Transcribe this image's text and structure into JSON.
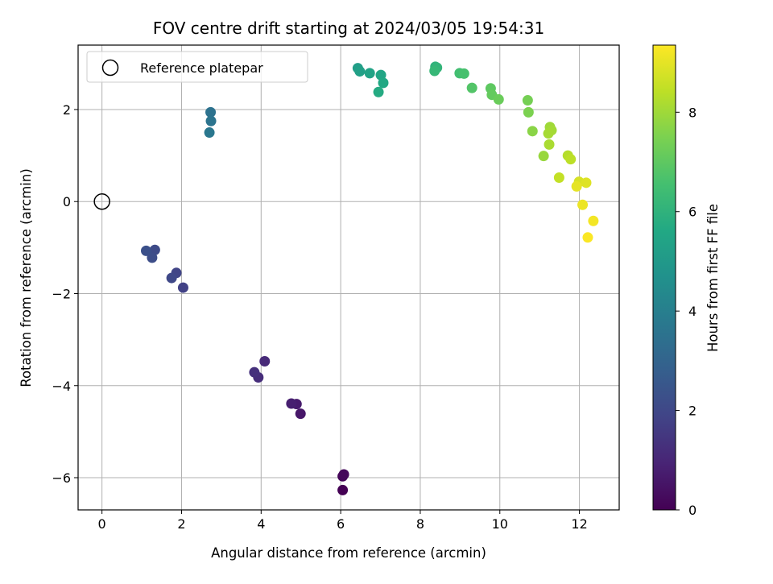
{
  "chart_data": {
    "type": "scatter",
    "title": "FOV centre drift starting at 2024/03/05 19:54:31",
    "xlabel": "Angular distance from reference (arcmin)",
    "ylabel": "Rotation from reference (arcmin)",
    "xlim": [
      -0.6,
      13.0
    ],
    "ylim": [
      -6.7,
      3.4
    ],
    "xticks": [
      0,
      2,
      4,
      6,
      8,
      10,
      12
    ],
    "yticks": [
      -6,
      -4,
      -2,
      0,
      2
    ],
    "xtick_labels": [
      "0",
      "2",
      "4",
      "6",
      "8",
      "10",
      "12"
    ],
    "ytick_labels": [
      "−6",
      "−4",
      "−2",
      "0",
      "2"
    ],
    "grid": true,
    "legend": {
      "placement": "top-left",
      "entries": [
        {
          "label": "Reference platepar",
          "marker": "open-circle",
          "x": 0,
          "y": 0
        }
      ]
    },
    "colorbar": {
      "label": "Hours from first FF file",
      "range": [
        0,
        9.35
      ],
      "ticks": [
        0,
        2,
        4,
        6,
        8
      ],
      "tick_labels": [
        "0",
        "2",
        "4",
        "6",
        "8"
      ],
      "colormap": "viridis"
    },
    "points": [
      {
        "x": 6.05,
        "y": -6.27,
        "hours": 0.0
      },
      {
        "x": 6.05,
        "y": -5.97,
        "hours": 0.1
      },
      {
        "x": 6.08,
        "y": -5.93,
        "hours": 0.2
      },
      {
        "x": 4.99,
        "y": -4.61,
        "hours": 0.6
      },
      {
        "x": 4.89,
        "y": -4.4,
        "hours": 0.7
      },
      {
        "x": 4.76,
        "y": -4.39,
        "hours": 0.8
      },
      {
        "x": 4.09,
        "y": -3.47,
        "hours": 1.1
      },
      {
        "x": 3.93,
        "y": -3.82,
        "hours": 1.2
      },
      {
        "x": 3.83,
        "y": -3.71,
        "hours": 1.3
      },
      {
        "x": 2.04,
        "y": -1.87,
        "hours": 1.8
      },
      {
        "x": 1.87,
        "y": -1.55,
        "hours": 1.9
      },
      {
        "x": 1.75,
        "y": -1.66,
        "hours": 2.0
      },
      {
        "x": 1.33,
        "y": -1.05,
        "hours": 2.1
      },
      {
        "x": 1.26,
        "y": -1.22,
        "hours": 2.2
      },
      {
        "x": 1.11,
        "y": -1.07,
        "hours": 2.3
      },
      {
        "x": 2.73,
        "y": 1.94,
        "hours": 3.5
      },
      {
        "x": 2.74,
        "y": 1.75,
        "hours": 3.6
      },
      {
        "x": 2.7,
        "y": 1.5,
        "hours": 3.7
      },
      {
        "x": 6.43,
        "y": 2.9,
        "hours": 5.2
      },
      {
        "x": 6.48,
        "y": 2.83,
        "hours": 5.3
      },
      {
        "x": 6.73,
        "y": 2.79,
        "hours": 5.4
      },
      {
        "x": 7.01,
        "y": 2.75,
        "hours": 5.5
      },
      {
        "x": 7.07,
        "y": 2.58,
        "hours": 5.6
      },
      {
        "x": 6.95,
        "y": 2.38,
        "hours": 5.7
      },
      {
        "x": 8.38,
        "y": 2.93,
        "hours": 6.0
      },
      {
        "x": 8.42,
        "y": 2.91,
        "hours": 6.1
      },
      {
        "x": 8.36,
        "y": 2.84,
        "hours": 6.2
      },
      {
        "x": 8.99,
        "y": 2.79,
        "hours": 6.5
      },
      {
        "x": 9.1,
        "y": 2.78,
        "hours": 6.6
      },
      {
        "x": 9.3,
        "y": 2.47,
        "hours": 6.8
      },
      {
        "x": 9.77,
        "y": 2.46,
        "hours": 7.0
      },
      {
        "x": 9.8,
        "y": 2.32,
        "hours": 7.1
      },
      {
        "x": 9.97,
        "y": 2.22,
        "hours": 7.2
      },
      {
        "x": 10.7,
        "y": 2.2,
        "hours": 7.4
      },
      {
        "x": 10.72,
        "y": 1.94,
        "hours": 7.5
      },
      {
        "x": 10.82,
        "y": 1.53,
        "hours": 7.7
      },
      {
        "x": 11.1,
        "y": 0.99,
        "hours": 7.9
      },
      {
        "x": 11.26,
        "y": 1.62,
        "hours": 8.0
      },
      {
        "x": 11.3,
        "y": 1.55,
        "hours": 8.05
      },
      {
        "x": 11.22,
        "y": 1.48,
        "hours": 8.1
      },
      {
        "x": 11.24,
        "y": 1.24,
        "hours": 8.15
      },
      {
        "x": 11.71,
        "y": 1.0,
        "hours": 8.3
      },
      {
        "x": 11.78,
        "y": 0.92,
        "hours": 8.4
      },
      {
        "x": 11.49,
        "y": 0.52,
        "hours": 8.5
      },
      {
        "x": 11.99,
        "y": 0.43,
        "hours": 8.8
      },
      {
        "x": 12.17,
        "y": 0.41,
        "hours": 8.9
      },
      {
        "x": 11.93,
        "y": 0.33,
        "hours": 9.0
      },
      {
        "x": 12.08,
        "y": -0.07,
        "hours": 9.1
      },
      {
        "x": 12.35,
        "y": -0.42,
        "hours": 9.2
      },
      {
        "x": 12.21,
        "y": -0.78,
        "hours": 9.3
      }
    ]
  }
}
